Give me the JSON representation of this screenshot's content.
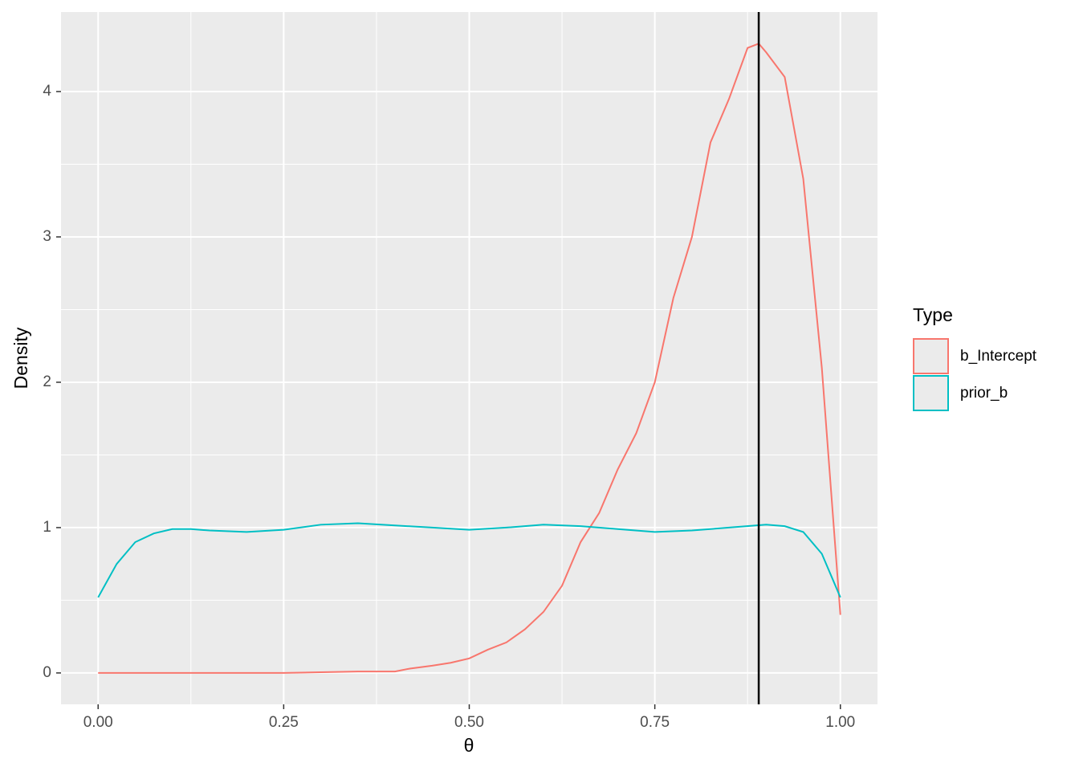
{
  "chart_data": {
    "type": "line",
    "x_label": "θ",
    "y_label": "Density",
    "legend_title": "Type",
    "xlim": [
      -0.05,
      1.05
    ],
    "ylim": [
      -0.216,
      4.547
    ],
    "xticks": [
      {
        "value": 0,
        "label": "0.00"
      },
      {
        "value": 0.25,
        "label": "0.25"
      },
      {
        "value": 0.5,
        "label": "0.50"
      },
      {
        "value": 0.75,
        "label": "0.75"
      },
      {
        "value": 1,
        "label": "1.00"
      }
    ],
    "yticks": [
      0,
      1,
      2,
      3,
      4
    ],
    "grid": true,
    "legend_position": "right",
    "vline": 0.89,
    "vline_color": "#000000",
    "series": [
      {
        "name": "b_Intercept",
        "color": "#f8766d",
        "x": [
          0,
          0.25,
          0.3,
          0.35,
          0.4,
          0.42,
          0.45,
          0.475,
          0.5,
          0.525,
          0.55,
          0.575,
          0.6,
          0.625,
          0.65,
          0.675,
          0.7,
          0.725,
          0.75,
          0.775,
          0.8,
          0.825,
          0.85,
          0.875,
          0.89,
          0.9,
          0.925,
          0.95,
          0.975,
          1.0
        ],
        "values": [
          0,
          0,
          0.005,
          0.01,
          0.01,
          0.03,
          0.05,
          0.07,
          0.1,
          0.16,
          0.21,
          0.3,
          0.42,
          0.6,
          0.9,
          1.1,
          1.4,
          1.65,
          2.0,
          2.58,
          3.0,
          3.65,
          3.95,
          4.3,
          4.33,
          4.27,
          4.1,
          3.4,
          2.1,
          0.4
        ]
      },
      {
        "name": "prior_b",
        "color": "#00bfc4",
        "x": [
          0,
          0.025,
          0.05,
          0.075,
          0.1,
          0.125,
          0.15,
          0.2,
          0.25,
          0.3,
          0.35,
          0.4,
          0.45,
          0.5,
          0.55,
          0.6,
          0.65,
          0.7,
          0.75,
          0.8,
          0.85,
          0.9,
          0.925,
          0.95,
          0.975,
          1.0
        ],
        "values": [
          0.52,
          0.75,
          0.9,
          0.96,
          0.99,
          0.99,
          0.98,
          0.97,
          0.985,
          1.02,
          1.03,
          1.015,
          1.0,
          0.985,
          1.0,
          1.02,
          1.01,
          0.99,
          0.97,
          0.98,
          1.0,
          1.02,
          1.01,
          0.97,
          0.82,
          0.52
        ]
      }
    ]
  }
}
